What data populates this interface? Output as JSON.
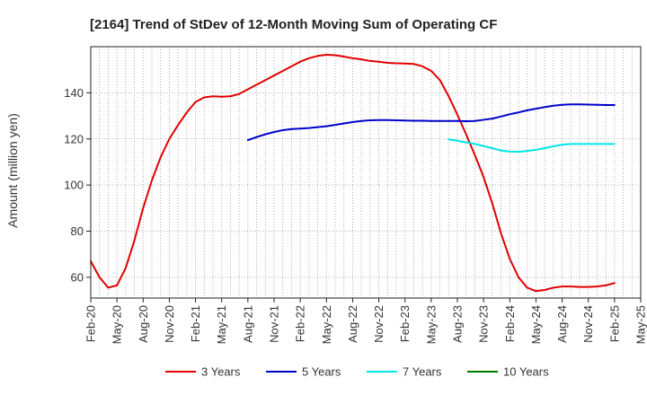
{
  "chart_data": {
    "type": "line",
    "title": "[2164]  Trend of StDev of 12-Month Moving Sum of Operating CF",
    "xlabel": "",
    "ylabel": "Amount (million yen)",
    "ylim": [
      51,
      160
    ],
    "yticks": [
      60,
      80,
      100,
      120,
      140
    ],
    "grid": true,
    "legend_position": "bottom",
    "x_ticks": [
      "Feb-20",
      "May-20",
      "Aug-20",
      "Nov-20",
      "Feb-21",
      "May-21",
      "Aug-21",
      "Nov-21",
      "Feb-22",
      "May-22",
      "Aug-22",
      "Nov-22",
      "Feb-23",
      "May-23",
      "Aug-23",
      "Nov-23",
      "Feb-24",
      "May-24",
      "Aug-24",
      "Nov-24",
      "Feb-25",
      "May-25"
    ],
    "months": [
      "2020-02",
      "2020-03",
      "2020-04",
      "2020-05",
      "2020-06",
      "2020-07",
      "2020-08",
      "2020-09",
      "2020-10",
      "2020-11",
      "2020-12",
      "2021-01",
      "2021-02",
      "2021-03",
      "2021-04",
      "2021-05",
      "2021-06",
      "2021-07",
      "2021-08",
      "2021-09",
      "2021-10",
      "2021-11",
      "2021-12",
      "2022-01",
      "2022-02",
      "2022-03",
      "2022-04",
      "2022-05",
      "2022-06",
      "2022-07",
      "2022-08",
      "2022-09",
      "2022-10",
      "2022-11",
      "2022-12",
      "2023-01",
      "2023-02",
      "2023-03",
      "2023-04",
      "2023-05",
      "2023-06",
      "2023-07",
      "2023-08",
      "2023-09",
      "2023-10",
      "2023-11",
      "2023-12",
      "2024-01",
      "2024-02",
      "2024-03",
      "2024-04",
      "2024-05",
      "2024-06",
      "2024-07",
      "2024-08",
      "2024-09",
      "2024-10",
      "2024-11",
      "2024-12",
      "2025-01",
      "2025-02",
      "2025-03",
      "2025-04",
      "2025-05"
    ],
    "series": [
      {
        "name": "3 Years",
        "color": "#e00000",
        "values": [
          67,
          60,
          55.5,
          56.5,
          64,
          76,
          90,
          102,
          112,
          120,
          126,
          131.5,
          136,
          138,
          138.5,
          138.3,
          138.5,
          139.5,
          141.5,
          143.5,
          145.5,
          147.5,
          149.5,
          151.5,
          153.5,
          155,
          156,
          156.5,
          156.3,
          155.7,
          155,
          154.5,
          153.8,
          153.5,
          153,
          152.8,
          152.7,
          152.5,
          151.5,
          149.5,
          145.5,
          138.5,
          130.5,
          122,
          113,
          103.5,
          92,
          79,
          68,
          60,
          55.5,
          54,
          54.5,
          55.5,
          56,
          56,
          55.8,
          55.8,
          56,
          56.5,
          57.5,
          null,
          null,
          null
        ]
      },
      {
        "name": "5 Years",
        "color": "#0000cc",
        "values": [
          null,
          null,
          null,
          null,
          null,
          null,
          null,
          null,
          null,
          null,
          null,
          null,
          null,
          null,
          null,
          null,
          null,
          null,
          119.5,
          120.8,
          122,
          123,
          123.8,
          124.3,
          124.5,
          124.7,
          125.1,
          125.5,
          126.1,
          126.7,
          127.3,
          127.8,
          128.1,
          128.2,
          128.2,
          128.1,
          128,
          127.9,
          127.9,
          127.8,
          127.8,
          127.8,
          127.8,
          127.7,
          127.8,
          128.3,
          128.8,
          129.7,
          130.7,
          131.5,
          132.4,
          133.1,
          133.8,
          134.4,
          134.8,
          135,
          135,
          134.9,
          134.8,
          134.7,
          134.7,
          null,
          null,
          null
        ]
      },
      {
        "name": "7 Years",
        "color": "#00e5e5",
        "values": [
          null,
          null,
          null,
          null,
          null,
          null,
          null,
          null,
          null,
          null,
          null,
          null,
          null,
          null,
          null,
          null,
          null,
          null,
          null,
          null,
          null,
          null,
          null,
          null,
          null,
          null,
          null,
          null,
          null,
          null,
          null,
          null,
          null,
          null,
          null,
          null,
          null,
          null,
          null,
          null,
          null,
          119.8,
          119.2,
          118.5,
          117.8,
          116.9,
          116,
          115,
          114.5,
          114.4,
          114.8,
          115.3,
          116,
          116.8,
          117.5,
          117.8,
          117.8,
          117.8,
          117.8,
          117.8,
          117.8,
          null,
          null,
          null
        ]
      },
      {
        "name": "10 Years",
        "color": "#007700",
        "values": []
      }
    ]
  }
}
